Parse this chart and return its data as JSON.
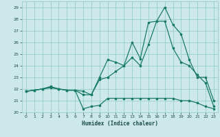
{
  "xlabel": "Humidex (Indice chaleur)",
  "bg_color": "#cce8e8",
  "grid_color": "#99cccc",
  "line_color": "#1a7a6a",
  "xlim": [
    -0.5,
    23.5
  ],
  "ylim": [
    20,
    29.5
  ],
  "xticks": [
    0,
    1,
    2,
    3,
    4,
    5,
    6,
    7,
    8,
    9,
    10,
    11,
    12,
    13,
    14,
    15,
    16,
    17,
    18,
    19,
    20,
    21,
    22,
    23
  ],
  "yticks": [
    20,
    21,
    22,
    23,
    24,
    25,
    26,
    27,
    28,
    29
  ],
  "line1_x": [
    0,
    1,
    2,
    3,
    4,
    5,
    6,
    7,
    8,
    9,
    10,
    11,
    12,
    13,
    14,
    15,
    16,
    17,
    18,
    19,
    20,
    21,
    22,
    23
  ],
  "line1_y": [
    21.8,
    21.9,
    22.0,
    22.1,
    22.0,
    21.9,
    21.9,
    20.3,
    20.5,
    20.6,
    21.2,
    21.2,
    21.2,
    21.2,
    21.2,
    21.2,
    21.2,
    21.2,
    21.2,
    21.0,
    21.0,
    20.8,
    20.5,
    20.3
  ],
  "line2_x": [
    0,
    1,
    2,
    3,
    4,
    5,
    6,
    7,
    8,
    9,
    10,
    11,
    12,
    13,
    14,
    15,
    16,
    17,
    18,
    19,
    20,
    21,
    22,
    23
  ],
  "line2_y": [
    21.8,
    21.9,
    22.0,
    22.2,
    22.0,
    21.9,
    21.9,
    21.8,
    21.5,
    22.8,
    23.0,
    23.5,
    24.0,
    24.7,
    24.0,
    25.8,
    27.8,
    27.8,
    25.5,
    24.3,
    24.0,
    23.2,
    22.5,
    20.5
  ],
  "line3_x": [
    0,
    1,
    2,
    3,
    4,
    5,
    6,
    7,
    8,
    9,
    10,
    11,
    12,
    13,
    14,
    15,
    16,
    17,
    18,
    19,
    20,
    21,
    22,
    23
  ],
  "line3_y": [
    21.8,
    21.9,
    22.0,
    22.2,
    22.0,
    21.9,
    21.9,
    21.5,
    21.5,
    23.0,
    24.5,
    24.3,
    24.0,
    26.0,
    24.6,
    27.7,
    27.8,
    29.0,
    27.5,
    26.7,
    24.5,
    23.0,
    23.0,
    21.0
  ]
}
